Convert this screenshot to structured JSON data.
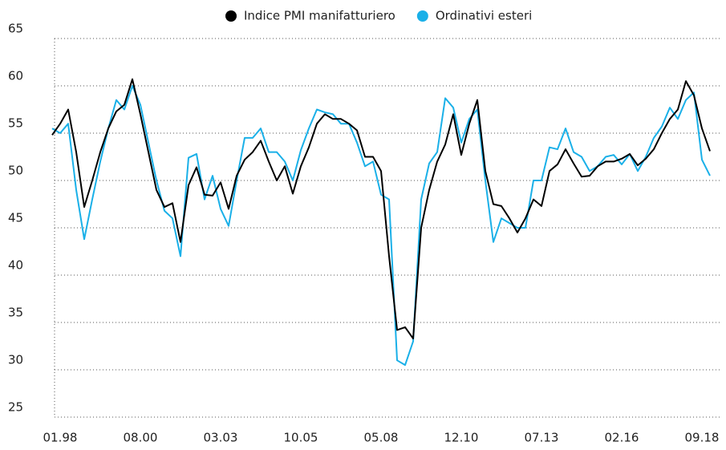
{
  "chart_data": {
    "type": "line",
    "categories": [
      null,
      "01.98",
      null,
      null,
      null,
      null,
      null,
      null,
      null,
      null,
      null,
      "08.00",
      null,
      null,
      null,
      null,
      null,
      null,
      null,
      null,
      null,
      "03.03",
      null,
      null,
      null,
      null,
      null,
      null,
      null,
      null,
      null,
      "10.05",
      null,
      null,
      null,
      null,
      null,
      null,
      null,
      null,
      null,
      "05.08",
      null,
      null,
      null,
      null,
      null,
      null,
      null,
      null,
      null,
      "12.10",
      null,
      null,
      null,
      null,
      null,
      null,
      null,
      null,
      null,
      "07.13",
      null,
      null,
      null,
      null,
      null,
      null,
      null,
      null,
      null,
      "02.16",
      null,
      null,
      null,
      null,
      null,
      null,
      null,
      null,
      null,
      "09.18",
      null
    ],
    "series": [
      {
        "name": "Indice PMI manifatturiero",
        "color": "#000000",
        "values": [
          54.8,
          56,
          57.5,
          53,
          47.2,
          50,
          53,
          55.5,
          57.3,
          58,
          60.7,
          57,
          53,
          49,
          47.2,
          47.6,
          43.5,
          49.5,
          51.4,
          48.5,
          48.4,
          49.8,
          47,
          50.5,
          52.2,
          53,
          54.2,
          52,
          50,
          51.5,
          48.6,
          51.5,
          53.5,
          56,
          57,
          56.5,
          56.5,
          56,
          55.3,
          52.5,
          52.5,
          51,
          42,
          34.2,
          34.5,
          33.3,
          45,
          49,
          52,
          53.8,
          57,
          52.7,
          56,
          58.5,
          51,
          47.5,
          47.3,
          46,
          44.5,
          46,
          48,
          47.3,
          51,
          51.7,
          53.3,
          51.8,
          50.4,
          50.5,
          51.5,
          52,
          52,
          52.3,
          52.8,
          51.6,
          52.3,
          53.3,
          55,
          56.5,
          57.5,
          60.5,
          59,
          55.5,
          53.1
        ]
      },
      {
        "name": "Ordinativi esteri",
        "color": "#1ab0e8",
        "values": [
          55.5,
          55,
          56,
          49,
          43.8,
          48,
          52,
          55.5,
          58.5,
          57.5,
          60,
          58,
          54,
          50,
          46.8,
          46,
          42,
          52.4,
          52.8,
          48,
          50.5,
          47,
          45.2,
          50,
          54.5,
          54.5,
          55.5,
          53,
          53,
          52,
          50,
          53.2,
          55.5,
          57.5,
          57.2,
          57,
          56,
          56,
          54,
          51.5,
          52,
          48.5,
          48,
          31,
          30.5,
          33,
          48,
          51.8,
          53,
          58.7,
          57.7,
          54,
          56.5,
          57.5,
          50,
          43.5,
          46,
          45.5,
          45,
          45,
          50,
          50,
          53.5,
          53.3,
          55.5,
          53,
          52.5,
          51,
          51.5,
          52.5,
          52.7,
          51.7,
          52.8,
          51,
          52.5,
          54.5,
          55.7,
          57.7,
          56.5,
          58.5,
          59.3,
          52.2,
          50.5
        ]
      }
    ],
    "ylim": [
      25,
      65
    ],
    "yticks": [
      25,
      30,
      35,
      40,
      45,
      50,
      55,
      60,
      65
    ],
    "grid": true,
    "legend": "top"
  }
}
